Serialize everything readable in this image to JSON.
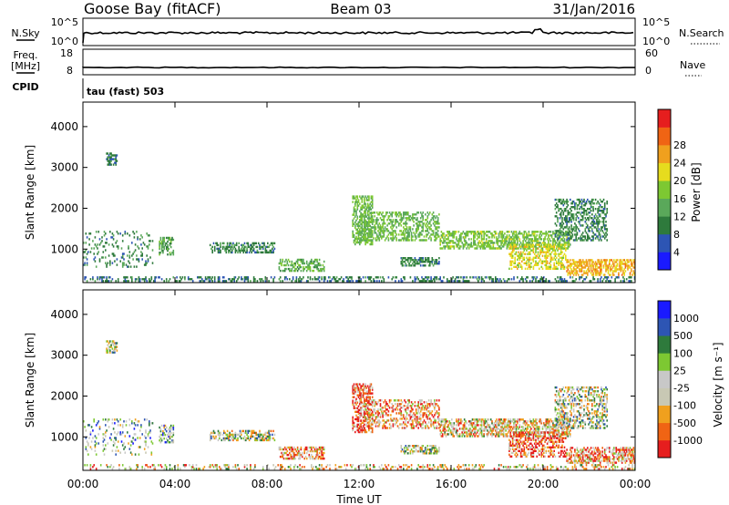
{
  "header": {
    "station": "Goose Bay (fitACF)",
    "beam": "Beam 03",
    "date": "31/Jan/2016"
  },
  "top_panels": {
    "nsky": {
      "label": "N.Sky",
      "ticks": [
        "10^5",
        "10^0"
      ]
    },
    "nsearch": {
      "label": "N.Search",
      "ticks": [
        "10^5",
        "10^0"
      ]
    },
    "freq": {
      "label_line1": "Freq.",
      "label_line2": "[MHz]",
      "ticks": [
        "18",
        "8"
      ]
    },
    "nave": {
      "label": "Nave",
      "ticks": [
        "60",
        "0"
      ]
    },
    "cpid": {
      "label": "CPID",
      "mode": "tau (fast) 503"
    }
  },
  "colors": {
    "power": [
      "#1a1aff",
      "#2d55b4",
      "#2e7a3c",
      "#5aa85a",
      "#7dc832",
      "#e6dc1e",
      "#f0a01e",
      "#f06414",
      "#e61e1e"
    ],
    "velocity": [
      "#e61e1e",
      "#f06414",
      "#f0a01e",
      "#c8c8b4",
      "#c8c8c8",
      "#7dc832",
      "#2e7a3c",
      "#2d55b4",
      "#1a1aff"
    ]
  },
  "chart_data": [
    {
      "type": "heatmap",
      "quantity": "power",
      "ylabel": "Slant Range [km]",
      "yticks": [
        1000,
        2000,
        3000,
        4000
      ],
      "ylim": [
        180,
        4600
      ],
      "xlim_hours": [
        0,
        24
      ],
      "colorbar": {
        "label": "Power [dB]",
        "ticks": [
          "4",
          "8",
          "12",
          "16",
          "20",
          "24",
          "28"
        ],
        "range": [
          0,
          31.5
        ]
      },
      "regions": [
        {
          "t": [
            0.0,
            24.0
          ],
          "r": [
            200,
            320
          ],
          "level": 8,
          "density": 0.35
        },
        {
          "t": [
            0.0,
            3.0
          ],
          "r": [
            550,
            1450
          ],
          "level": 9,
          "density": 0.15
        },
        {
          "t": [
            1.0,
            1.5
          ],
          "r": [
            3050,
            3350
          ],
          "level": 8,
          "density": 0.5
        },
        {
          "t": [
            3.3,
            3.9
          ],
          "r": [
            850,
            1300
          ],
          "level": 12,
          "density": 0.4
        },
        {
          "t": [
            5.5,
            8.3
          ],
          "r": [
            900,
            1150
          ],
          "level": 9,
          "density": 0.45
        },
        {
          "t": [
            8.5,
            10.5
          ],
          "r": [
            450,
            750
          ],
          "level": 13,
          "density": 0.5
        },
        {
          "t": [
            11.7,
            12.6
          ],
          "r": [
            1100,
            2300
          ],
          "level": 14,
          "density": 0.5
        },
        {
          "t": [
            12.0,
            15.5
          ],
          "r": [
            1200,
            1900
          ],
          "level": 14,
          "density": 0.4
        },
        {
          "t": [
            13.8,
            15.5
          ],
          "r": [
            580,
            780
          ],
          "level": 9,
          "density": 0.6
        },
        {
          "t": [
            15.5,
            21.2
          ],
          "r": [
            1000,
            1450
          ],
          "level": 15,
          "density": 0.55
        },
        {
          "t": [
            18.5,
            21.0
          ],
          "r": [
            500,
            1100
          ],
          "level": 19,
          "density": 0.45
        },
        {
          "t": [
            20.5,
            22.8
          ],
          "r": [
            1200,
            2200
          ],
          "level": 9,
          "density": 0.4
        },
        {
          "t": [
            21.0,
            24.0
          ],
          "r": [
            350,
            750
          ],
          "level": 22,
          "density": 0.55
        }
      ]
    },
    {
      "type": "heatmap",
      "quantity": "velocity",
      "ylabel": "Slant Range [km]",
      "yticks": [
        1000,
        2000,
        3000,
        4000
      ],
      "ylim": [
        180,
        4600
      ],
      "xlabel": "Time UT",
      "xticks": [
        "00:00",
        "04:00",
        "08:00",
        "12:00",
        "16:00",
        "20:00",
        "00:00"
      ],
      "xlim_hours": [
        0,
        24
      ],
      "colorbar": {
        "label": "Velocity [m s⁻¹]",
        "ticks": [
          "-1000",
          "-500",
          "-100",
          "-25",
          "25",
          "100",
          "500",
          "1000"
        ],
        "range": [
          -1200,
          1200
        ]
      },
      "regions": [
        {
          "t": [
            0.0,
            24.0
          ],
          "r": [
            200,
            320
          ],
          "level": 3,
          "density": 0.25
        },
        {
          "t": [
            0.0,
            3.0
          ],
          "r": [
            550,
            1450
          ],
          "level": 5,
          "density": 0.15
        },
        {
          "t": [
            1.0,
            1.5
          ],
          "r": [
            3050,
            3350
          ],
          "level": 4,
          "density": 0.5
        },
        {
          "t": [
            3.3,
            3.9
          ],
          "r": [
            850,
            1300
          ],
          "level": 5,
          "density": 0.4
        },
        {
          "t": [
            5.5,
            8.3
          ],
          "r": [
            900,
            1150
          ],
          "level": 4,
          "density": 0.45
        },
        {
          "t": [
            8.5,
            10.5
          ],
          "r": [
            450,
            750
          ],
          "level": 2,
          "density": 0.5
        },
        {
          "t": [
            11.7,
            12.6
          ],
          "r": [
            1100,
            2300
          ],
          "level": 1,
          "density": 0.5
        },
        {
          "t": [
            12.0,
            15.5
          ],
          "r": [
            1200,
            1900
          ],
          "level": 2,
          "density": 0.4
        },
        {
          "t": [
            13.8,
            15.5
          ],
          "r": [
            580,
            780
          ],
          "level": 4,
          "density": 0.6
        },
        {
          "t": [
            15.5,
            21.2
          ],
          "r": [
            1000,
            1450
          ],
          "level": 3,
          "density": 0.55
        },
        {
          "t": [
            18.5,
            21.0
          ],
          "r": [
            500,
            1100
          ],
          "level": 1,
          "density": 0.45
        },
        {
          "t": [
            20.5,
            22.8
          ],
          "r": [
            1200,
            2200
          ],
          "level": 4,
          "density": 0.4
        },
        {
          "t": [
            21.0,
            24.0
          ],
          "r": [
            350,
            750
          ],
          "level": 2,
          "density": 0.55
        }
      ]
    }
  ]
}
